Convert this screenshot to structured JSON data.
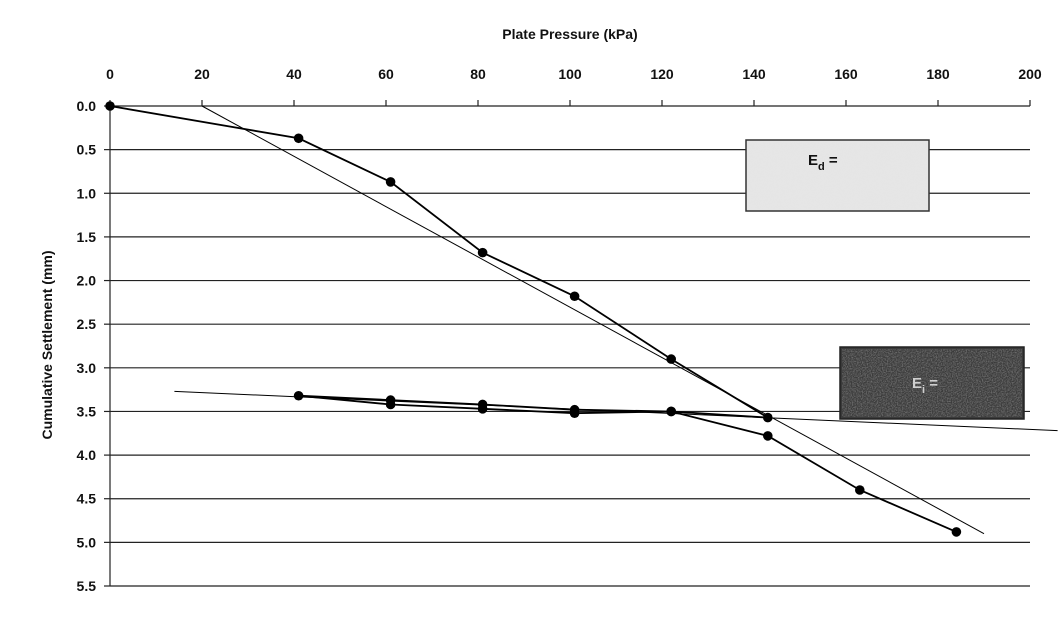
{
  "chart_data": {
    "type": "line",
    "title": "",
    "xlabel": "Plate Pressure (kPa)",
    "ylabel": "Cumulative Settlement (mm)",
    "x_axis_position": "top",
    "y_axis_inverted": true,
    "xlim": [
      0,
      200
    ],
    "ylim": [
      0,
      5.5
    ],
    "xticks": [
      "0",
      "20",
      "40",
      "60",
      "80",
      "100",
      "120",
      "140",
      "160",
      "180",
      "200"
    ],
    "yticks": [
      "0.0",
      "0.5",
      "1.0",
      "1.5",
      "2.0",
      "2.5",
      "3.0",
      "3.5",
      "4.0",
      "4.5",
      "5.0",
      "5.5"
    ],
    "grid": "horizontal",
    "series": [
      {
        "points": [
          [
            0,
            0.0
          ],
          [
            41,
            0.37
          ],
          [
            61,
            0.87
          ],
          [
            81,
            1.68
          ],
          [
            101,
            2.18
          ],
          [
            122,
            2.9
          ],
          [
            143,
            3.57
          ],
          [
            122,
            3.5
          ],
          [
            101,
            3.48
          ],
          [
            81,
            3.42
          ],
          [
            61,
            3.37
          ],
          [
            41,
            3.32
          ],
          [
            61,
            3.42
          ],
          [
            81,
            3.47
          ],
          [
            101,
            3.52
          ],
          [
            122,
            3.5
          ],
          [
            143,
            3.78
          ],
          [
            163,
            4.4
          ],
          [
            184,
            4.88
          ]
        ]
      }
    ],
    "trend_lines": [
      {
        "from": [
          20,
          0.0
        ],
        "to": [
          190,
          4.9
        ]
      },
      {
        "from": [
          14,
          3.27
        ],
        "to": [
          206,
          3.72
        ]
      }
    ],
    "annotations": [
      {
        "text": "E",
        "sub": "d",
        "suffix": " =",
        "style": "light-stippled-box"
      },
      {
        "text": "E",
        "sub": "i",
        "suffix": " =",
        "style": "dark-stippled-box"
      }
    ]
  }
}
